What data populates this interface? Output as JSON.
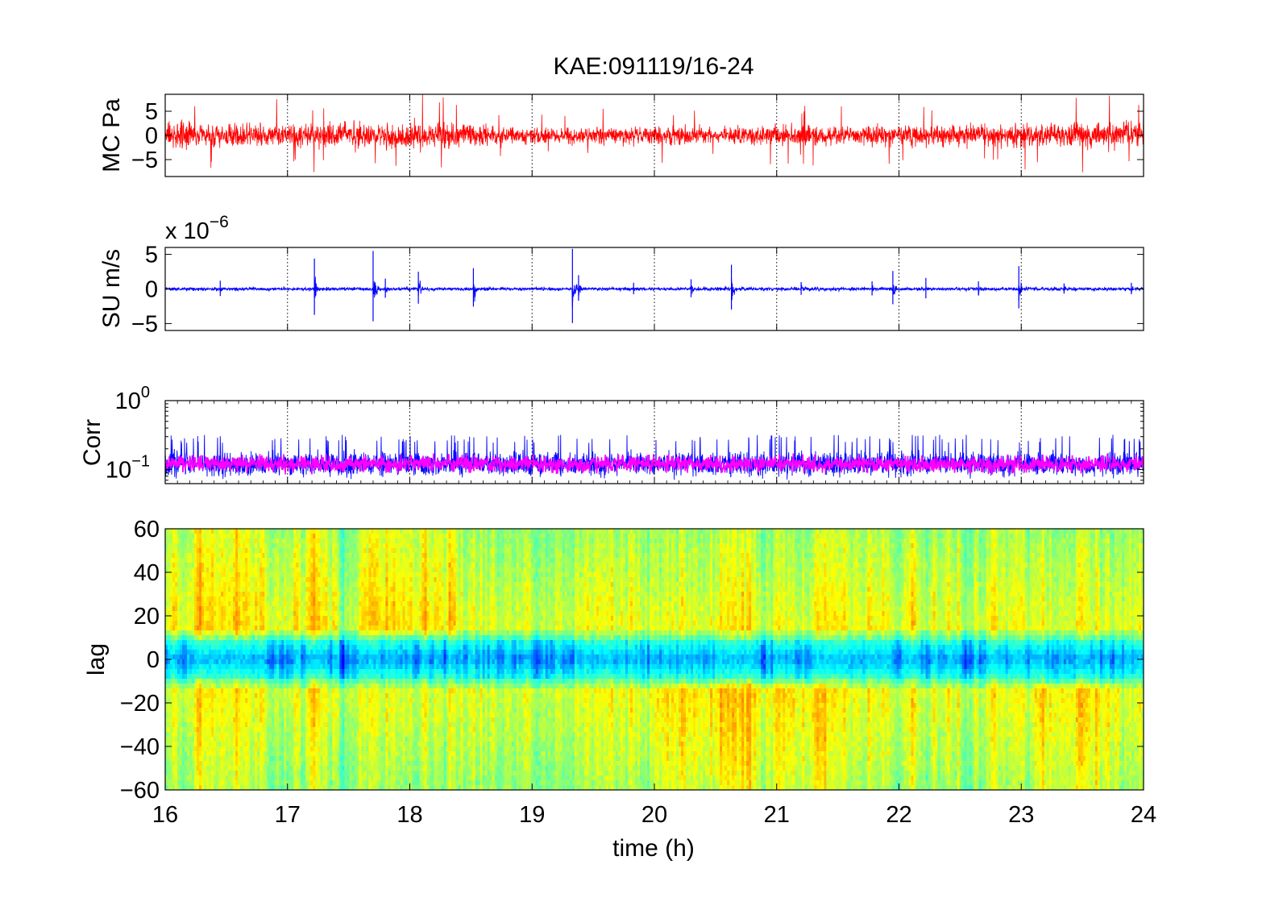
{
  "chart_data": [
    {
      "type": "line",
      "title": "KAE:091119/16-24",
      "ylabel": "MC Pa",
      "xlim": [
        16,
        24
      ],
      "ylim": [
        -8.5,
        8.5
      ],
      "yticks": [
        -5,
        0,
        5
      ],
      "ytick_labels": [
        "−5",
        "0",
        "5"
      ],
      "xgrid": true,
      "series": [
        {
          "color": "#ff0000",
          "x": [
            16,
            16.5,
            17,
            17.5,
            18,
            18.5,
            19,
            19.5,
            20,
            20.5,
            21,
            21.5,
            22,
            22.5,
            23,
            23.5,
            24
          ],
          "envelope": [
            4,
            3.8,
            3.6,
            3.9,
            4.2,
            3.8,
            2.5,
            2.6,
            2.9,
            2.8,
            3.1,
            2.9,
            3.1,
            3.3,
            3.5,
            3.8,
            4.2
          ]
        }
      ]
    },
    {
      "type": "line",
      "ylabel": "SU m/s",
      "exponent_label": "x 10",
      "exponent_power": "−6",
      "xlim": [
        16,
        24
      ],
      "ylim": [
        -6,
        6
      ],
      "yticks": [
        -5,
        0,
        5
      ],
      "ytick_labels": [
        "−5",
        "0",
        "5"
      ],
      "xgrid": true,
      "series": [
        {
          "color": "#0000ff",
          "baseline_amplitude": 0.3,
          "spikes": [
            {
              "x": 16.45,
              "v": 1.2
            },
            {
              "x": 17.22,
              "v": 4.4
            },
            {
              "x": 17.7,
              "v": 5.5
            },
            {
              "x": 17.8,
              "v": 1.5
            },
            {
              "x": 18.07,
              "v": 2.5
            },
            {
              "x": 18.52,
              "v": 3.0
            },
            {
              "x": 19.33,
              "v": 5.8
            },
            {
              "x": 19.38,
              "v": 2.0
            },
            {
              "x": 19.83,
              "v": 0.9
            },
            {
              "x": 20.3,
              "v": 1.4
            },
            {
              "x": 20.63,
              "v": 3.5
            },
            {
              "x": 21.2,
              "v": 1.0
            },
            {
              "x": 21.78,
              "v": 1.1
            },
            {
              "x": 21.95,
              "v": 2.6
            },
            {
              "x": 22.22,
              "v": 1.6
            },
            {
              "x": 22.65,
              "v": 1.1
            },
            {
              "x": 22.98,
              "v": 3.3
            },
            {
              "x": 23.35,
              "v": 0.8
            },
            {
              "x": 23.9,
              "v": 0.9
            }
          ]
        }
      ]
    },
    {
      "type": "line",
      "ylabel": "Corr",
      "yscale": "log",
      "xlim": [
        16,
        24
      ],
      "ylim": [
        0.0625,
        1
      ],
      "ytick_labels": [
        {
          "base": "10",
          "power": "0"
        },
        {
          "base": "10",
          "power": "−1"
        }
      ],
      "ytick_values": [
        1,
        0.1
      ],
      "xgrid": true,
      "series": [
        {
          "color": "#0000ff",
          "range": [
            0.07,
            0.32
          ],
          "center": 0.12
        },
        {
          "color": "#ff00ff",
          "range": [
            0.085,
            0.2
          ],
          "center": 0.12
        }
      ]
    },
    {
      "type": "heatmap",
      "ylabel": "lag",
      "xlabel": "time (h)",
      "xlim": [
        16,
        24
      ],
      "ylim": [
        -60,
        60
      ],
      "yticks": [
        60,
        40,
        20,
        0,
        -20,
        -40,
        -60
      ],
      "ytick_labels": [
        "60",
        "40",
        "20",
        "0",
        "−20",
        "−40",
        "−60"
      ],
      "xticks": [
        16,
        17,
        18,
        19,
        20,
        21,
        22,
        23,
        24
      ],
      "xtick_labels": [
        "16",
        "17",
        "18",
        "19",
        "20",
        "21",
        "22",
        "23",
        "24"
      ],
      "colormap": "jet",
      "description_values": {
        "center_band_lag": [
          -8,
          8
        ],
        "center_value": "low",
        "outer_value": "mid-high"
      }
    }
  ]
}
